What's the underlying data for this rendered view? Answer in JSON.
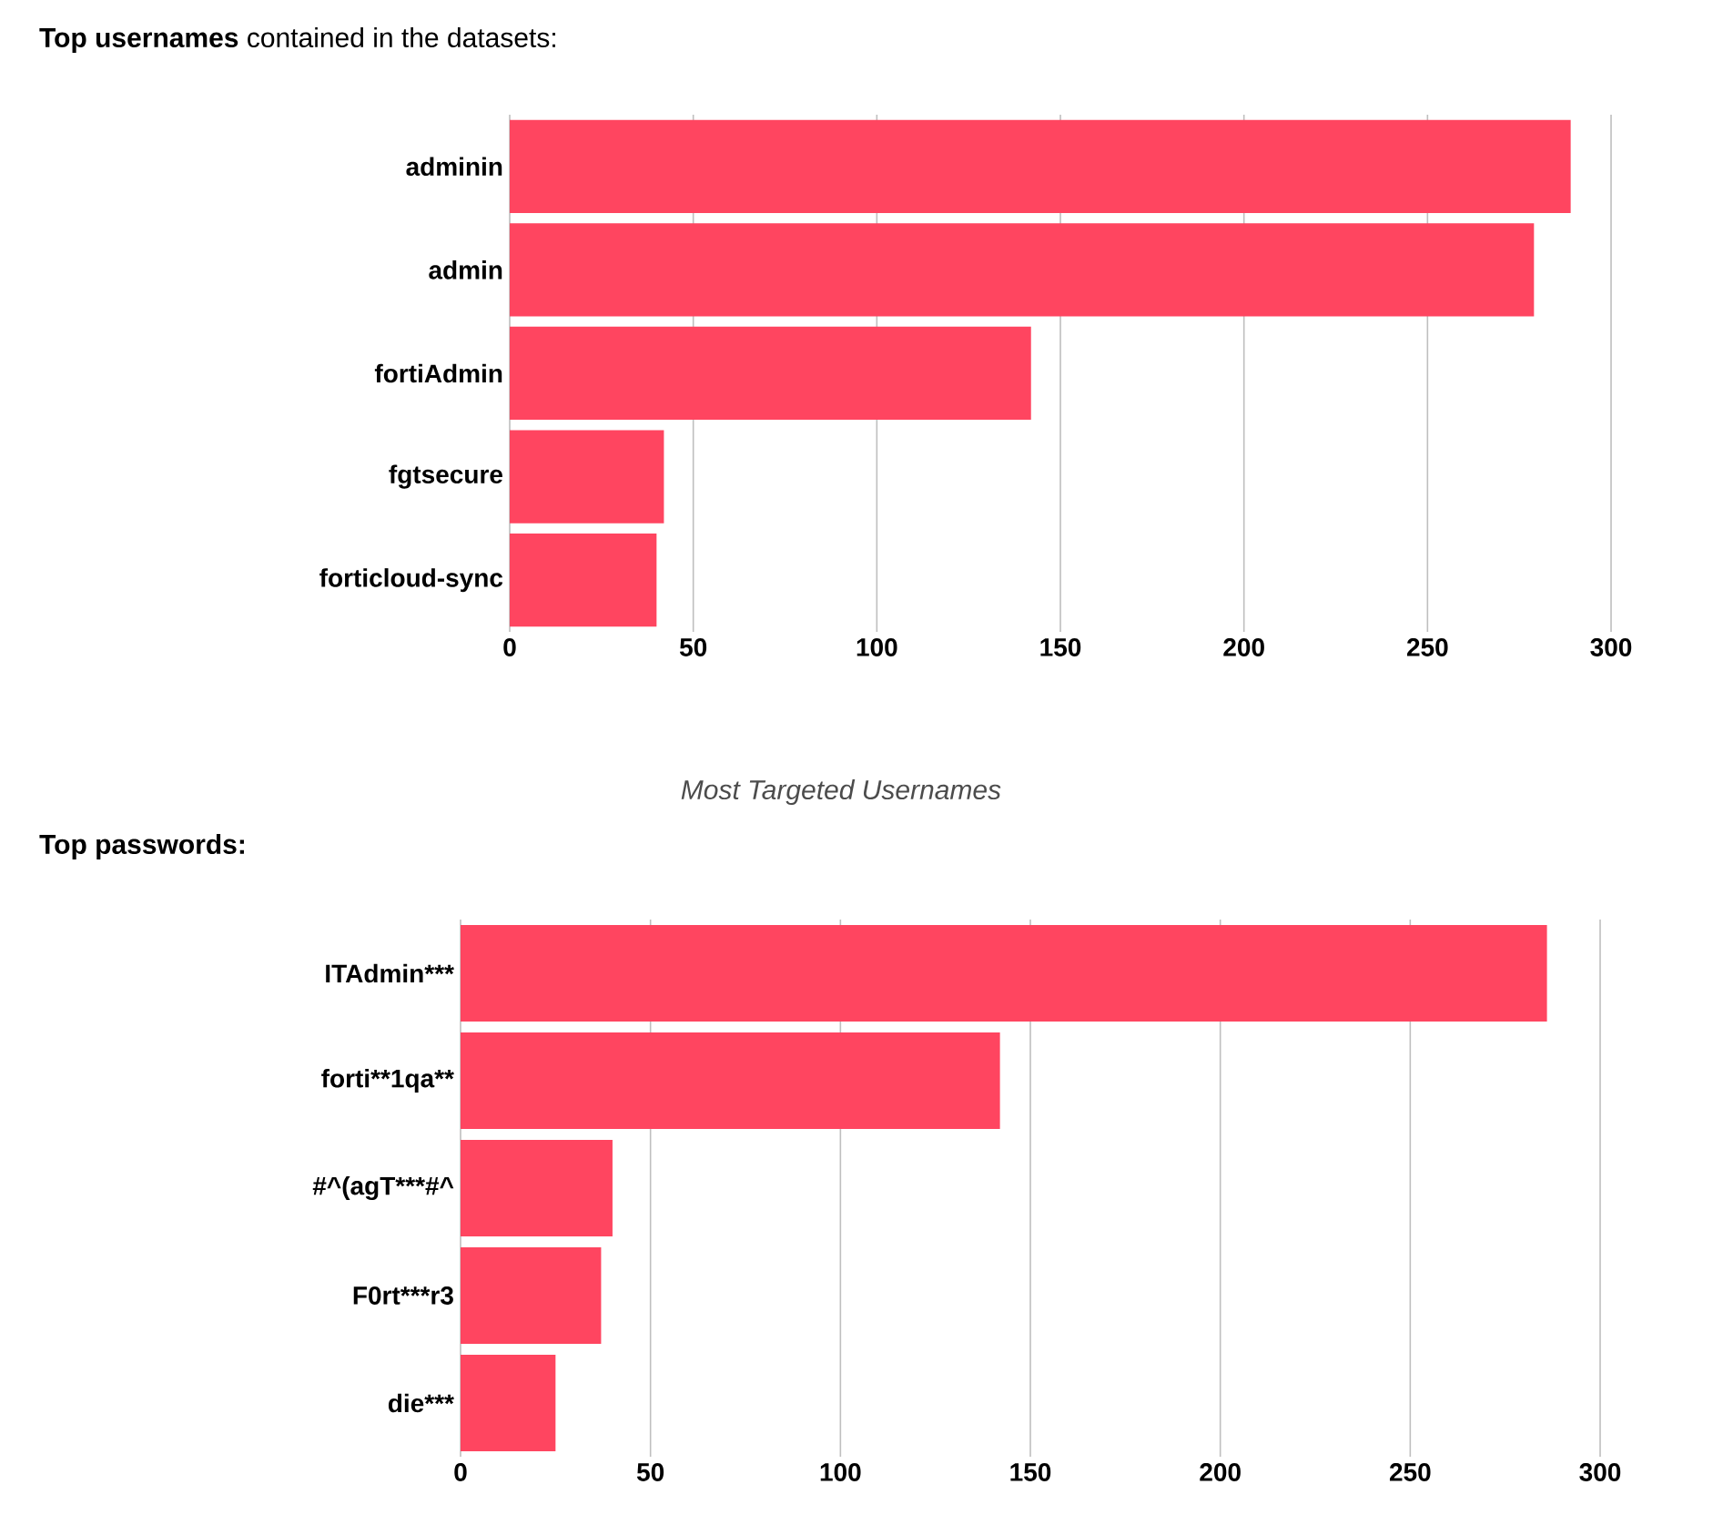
{
  "chart_data": [
    {
      "type": "bar",
      "orientation": "horizontal",
      "title": "**Top usernames** contained in the datasets:",
      "categories": [
        "adminin",
        "admin",
        "fortiAdmin",
        "fgtsecure",
        "forticloud-sync"
      ],
      "values": [
        289,
        279,
        142,
        42,
        40
      ],
      "color": "#ff4560",
      "xlim": [
        0,
        300
      ],
      "xticks": [
        0,
        50,
        100,
        150,
        200,
        250,
        300
      ],
      "grid": "x",
      "annotations": [
        "*Most Targeted Usernames*"
      ]
    },
    {
      "type": "bar",
      "orientation": "horizontal",
      "title": "**Top passwords:**",
      "categories": [
        "ITAdmin***",
        "forti**1qa**",
        "#^(agT***#^",
        "F0rt***r3",
        "die***"
      ],
      "values": [
        286,
        142,
        40,
        37,
        25
      ],
      "color": "#ff4560",
      "xlim": [
        0,
        300
      ],
      "xticks": [
        0,
        50,
        100,
        150,
        200,
        250,
        300
      ],
      "grid": "x"
    }
  ]
}
